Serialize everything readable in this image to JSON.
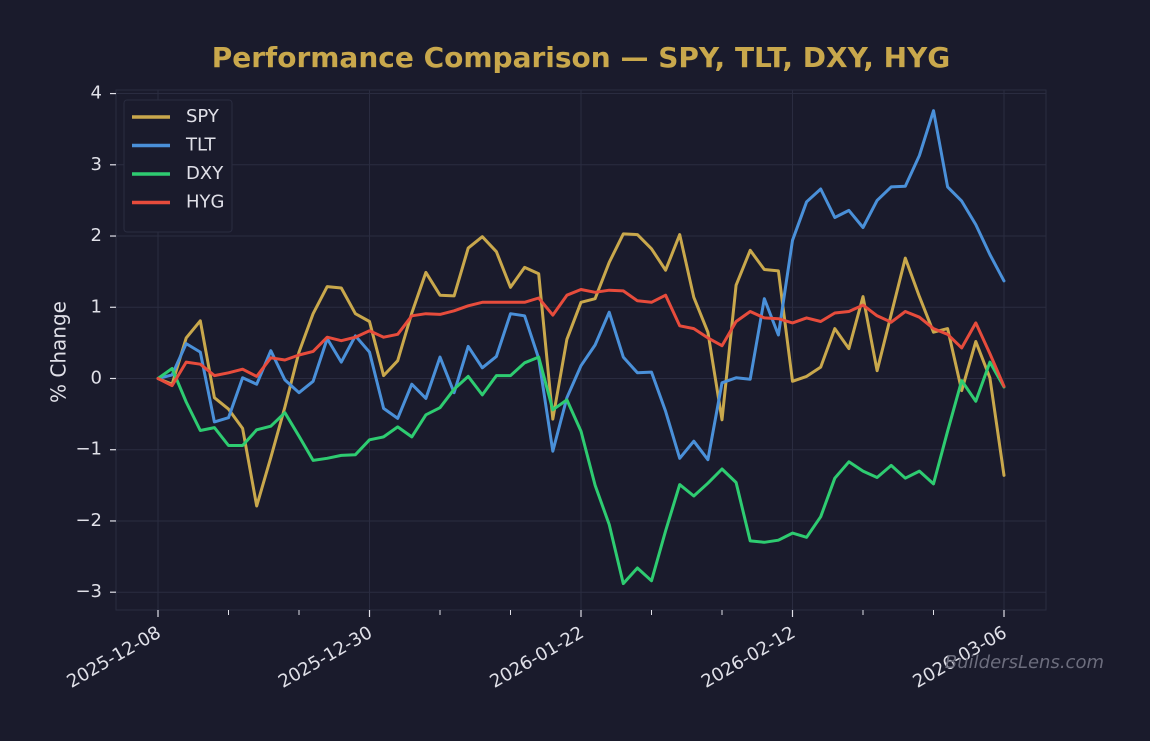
{
  "colors": {
    "background": "#1a1b2c",
    "title": "#c9a84c",
    "grid": "#2a2c40",
    "text": "#e0e0e8",
    "watermark": "#6c6d7d"
  },
  "watermark": "BuildersLens.com",
  "chart_data": {
    "type": "line",
    "title": "Performance Comparison — SPY, TLT, DXY, HYG",
    "xlabel": "",
    "ylabel": "% Change",
    "ylim": [
      -3.25,
      4.05
    ],
    "yticks": [
      -3,
      -2,
      -1,
      0,
      1,
      2,
      3,
      4
    ],
    "ytick_labels": [
      "−3",
      "−2",
      "−1",
      "0",
      "1",
      "2",
      "3",
      "4"
    ],
    "xtick_labels": [
      "2025-12-08",
      "2025-12-30",
      "2026-01-22",
      "2026-02-12",
      "2026-03-06"
    ],
    "major_tick_index": [
      0,
      15,
      30,
      45,
      60
    ],
    "minor_tick_step": 5,
    "grid": true,
    "legend_position": "upper-left",
    "x_count": 61,
    "series": [
      {
        "name": "SPY",
        "color": "#c9a84c",
        "values": [
          0,
          -0.08,
          0.57,
          0.81,
          -0.27,
          -0.43,
          -0.7,
          -1.79,
          -1.11,
          -0.4,
          0.37,
          0.91,
          1.29,
          1.27,
          0.91,
          0.8,
          0.04,
          0.25,
          0.92,
          1.49,
          1.17,
          1.16,
          1.83,
          1.99,
          1.78,
          1.28,
          1.56,
          1.47,
          -0.57,
          0.55,
          1.07,
          1.12,
          1.63,
          2.03,
          2.02,
          1.82,
          1.52,
          2.02,
          1.14,
          0.65,
          -0.58,
          1.31,
          1.8,
          1.53,
          1.51,
          -0.04,
          0.03,
          0.16,
          0.7,
          0.42,
          1.15,
          0.11,
          0.9,
          1.69,
          1.15,
          0.65,
          0.7,
          -0.17,
          0.52,
          0.01,
          -1.36
        ]
      },
      {
        "name": "TLT",
        "color": "#4a90d9",
        "values": [
          0,
          0.05,
          0.49,
          0.37,
          -0.61,
          -0.55,
          0.01,
          -0.08,
          0.39,
          -0.02,
          -0.2,
          -0.04,
          0.56,
          0.23,
          0.6,
          0.37,
          -0.42,
          -0.56,
          -0.08,
          -0.28,
          0.3,
          -0.2,
          0.45,
          0.15,
          0.31,
          0.91,
          0.88,
          0.28,
          -1.02,
          -0.27,
          0.18,
          0.47,
          0.93,
          0.3,
          0.08,
          0.09,
          -0.46,
          -1.12,
          -0.88,
          -1.14,
          -0.06,
          0.01,
          -0.01,
          1.12,
          0.61,
          1.94,
          2.48,
          2.66,
          2.26,
          2.36,
          2.12,
          2.5,
          2.69,
          2.7,
          3.13,
          3.76,
          2.69,
          2.49,
          2.16,
          1.74,
          1.37
        ]
      },
      {
        "name": "DXY",
        "color": "#2ecc71",
        "values": [
          0,
          0.14,
          -0.33,
          -0.73,
          -0.69,
          -0.94,
          -0.94,
          -0.72,
          -0.67,
          -0.48,
          -0.81,
          -1.15,
          -1.12,
          -1.08,
          -1.07,
          -0.86,
          -0.82,
          -0.68,
          -0.82,
          -0.51,
          -0.41,
          -0.15,
          0.03,
          -0.23,
          0.04,
          0.04,
          0.22,
          0.3,
          -0.44,
          -0.3,
          -0.74,
          -1.5,
          -2.05,
          -2.88,
          -2.66,
          -2.84,
          -2.14,
          -1.49,
          -1.65,
          -1.47,
          -1.27,
          -1.46,
          -2.28,
          -2.3,
          -2.27,
          -2.17,
          -2.23,
          -1.94,
          -1.4,
          -1.17,
          -1.3,
          -1.39,
          -1.22,
          -1.4,
          -1.3,
          -1.48,
          -0.74,
          -0.03,
          -0.32,
          0.23,
          -0.12
        ]
      },
      {
        "name": "HYG",
        "color": "#e74c3c",
        "values": [
          0,
          -0.1,
          0.23,
          0.2,
          0.04,
          0.08,
          0.13,
          0.03,
          0.29,
          0.26,
          0.33,
          0.38,
          0.58,
          0.53,
          0.58,
          0.67,
          0.58,
          0.62,
          0.88,
          0.91,
          0.9,
          0.95,
          1.02,
          1.07,
          1.07,
          1.07,
          1.07,
          1.13,
          0.89,
          1.17,
          1.25,
          1.21,
          1.24,
          1.23,
          1.09,
          1.07,
          1.17,
          0.74,
          0.7,
          0.57,
          0.46,
          0.8,
          0.94,
          0.85,
          0.84,
          0.78,
          0.85,
          0.8,
          0.92,
          0.94,
          1.03,
          0.88,
          0.79,
          0.94,
          0.86,
          0.7,
          0.62,
          0.43,
          0.78,
          0.35,
          -0.11
        ]
      }
    ]
  }
}
